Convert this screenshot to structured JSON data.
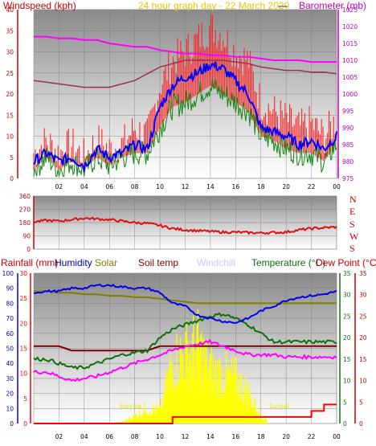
{
  "colors": {
    "windspeed": "#c80000",
    "gust": "#ff2222",
    "average": "#0000ff",
    "wind_mean": "#128812",
    "barometer": "#ff00ff",
    "pressure_trend": "#a0304c",
    "direction": "#dd1111",
    "direction_axis": "#c80000",
    "rainfall": "#ff0000",
    "humidity": "#0000ee",
    "solar": "#808000",
    "solar_fill": "#ffff00",
    "soiltemp": "#800000",
    "windchill": "#c8c8ff",
    "temperature": "#107010",
    "dewpoint": "#ff00ff",
    "dewpoint_axis": "#c80000",
    "axis_left": "#c80000",
    "axis_right": "#c000c0"
  },
  "top": {
    "title_windspeed": "Windspeed (kph)",
    "subtitle": "24 hour graph day - 22 March 2020",
    "subtitle_sep": "---",
    "title_barometer": "Barometer (mb)"
  },
  "middle": {
    "dirs": [
      "N",
      "E",
      "S",
      "W",
      "S"
    ]
  },
  "bottom": {
    "labels": {
      "rainfall": "Rainfall (mm)",
      "humidity": "Humidity",
      "solar": "Solar",
      "soiltemp": "Soil temp",
      "windchill": "Windchill",
      "temperature": "Temperature (°C)",
      "dewpoint": "Dew Point (°C)"
    },
    "sun_labels": [
      "Sunrise",
      "Sunset"
    ]
  },
  "chart_data": [
    {
      "type": "line",
      "title": "24 hour graph day - 22 March 2020",
      "xticks": [
        "02",
        "04",
        "06",
        "08",
        "10",
        "12",
        "14",
        "16",
        "18",
        "20",
        "22",
        "00"
      ],
      "yleft": {
        "label": "Windspeed (kph)",
        "range": [
          0,
          40
        ],
        "ticks": [
          0,
          5,
          10,
          15,
          20,
          25,
          30,
          35,
          40
        ]
      },
      "yright": {
        "label": "Barometer (mb)",
        "range": [
          975,
          1025
        ],
        "ticks": [
          975,
          980,
          985,
          990,
          995,
          1000,
          1005,
          1010,
          1015,
          1020,
          1025
        ]
      },
      "hours": [
        0,
        1,
        2,
        3,
        4,
        5,
        6,
        7,
        8,
        9,
        10,
        11,
        12,
        13,
        14,
        15,
        16,
        17,
        18,
        19,
        20,
        21,
        22,
        23,
        24
      ],
      "series": [
        {
          "name": "Windspeed (kph)",
          "key": "gust",
          "values": [
            6,
            9,
            6,
            8,
            5,
            9,
            7,
            8,
            12,
            10,
            22,
            28,
            30,
            33,
            36,
            34,
            30,
            28,
            18,
            16,
            14,
            12,
            13,
            10,
            14
          ]
        },
        {
          "name": "Windspeed (kph)",
          "key": "average",
          "values": [
            4,
            6,
            4,
            5,
            3,
            7,
            5,
            6,
            8,
            7,
            17,
            22,
            24,
            25,
            27,
            26,
            23,
            20,
            12,
            11,
            10,
            8,
            9,
            7,
            10
          ]
        },
        {
          "key": "wind_mean",
          "values": [
            2,
            5,
            2,
            4,
            2,
            5,
            3,
            5,
            6,
            6,
            12,
            17,
            18,
            20,
            22,
            20,
            18,
            16,
            10,
            9,
            7,
            6,
            6,
            4,
            8
          ]
        },
        {
          "name": "Barometer (mb)",
          "key": "barometer",
          "values": [
            1017,
            1017,
            1016.5,
            1016.5,
            1016,
            1016,
            1015,
            1014.5,
            1014,
            1014,
            1013,
            1012.5,
            1012,
            1012,
            1011.5,
            1011.5,
            1011,
            1011,
            1010.5,
            1010,
            1010,
            1010,
            1009.5,
            1009.5,
            1009.5
          ]
        },
        {
          "key": "pressure_trend",
          "values": [
            1004,
            1003.5,
            1003,
            1002.5,
            1002,
            1002,
            1002,
            1003,
            1004,
            1006,
            1008,
            1009,
            1010,
            1010,
            1010,
            1010,
            1009.5,
            1009,
            1008,
            1007.5,
            1007,
            1007,
            1006.5,
            1006.5,
            1006
          ]
        }
      ]
    },
    {
      "type": "line",
      "title": "Wind direction",
      "yleft": {
        "range": [
          0,
          360
        ],
        "ticks": [
          0,
          90,
          180,
          270,
          360
        ]
      },
      "right_labels": [
        "N",
        "E",
        "S",
        "W",
        "S"
      ],
      "hours": [
        0,
        1,
        2,
        3,
        4,
        5,
        6,
        7,
        8,
        9,
        10,
        11,
        12,
        13,
        14,
        15,
        16,
        17,
        18,
        19,
        20,
        21,
        22,
        23,
        24
      ],
      "series": [
        {
          "key": "direction",
          "values": [
            185,
            195,
            190,
            200,
            210,
            205,
            200,
            190,
            180,
            175,
            160,
            140,
            130,
            125,
            120,
            115,
            115,
            112,
            110,
            112,
            115,
            130,
            140,
            145,
            150
          ]
        }
      ]
    },
    {
      "type": "line",
      "xticks": [
        "02",
        "04",
        "06",
        "08",
        "10",
        "12",
        "14",
        "16",
        "18",
        "20",
        "22",
        "00"
      ],
      "y_humidity": {
        "label": "Humidity",
        "range": [
          0,
          100
        ],
        "ticks": [
          0,
          10,
          20,
          30,
          40,
          50,
          60,
          70,
          80,
          90,
          100
        ]
      },
      "y_rainfall": {
        "label": "Rainfall (mm)",
        "range": [
          0,
          30
        ],
        "ticks": [
          0,
          5,
          10,
          15,
          20,
          25,
          30
        ]
      },
      "y_temperature": {
        "label": "Temperature (°C)",
        "range": [
          0,
          35
        ],
        "ticks": [
          0,
          5,
          10,
          15,
          20,
          25,
          30,
          35
        ]
      },
      "y_dewpoint": {
        "label": "Dew Point (°C)",
        "range": [
          0,
          35
        ],
        "ticks": [
          0,
          5,
          10,
          15,
          20,
          25,
          30,
          35
        ]
      },
      "hours": [
        0,
        1,
        2,
        3,
        4,
        5,
        6,
        7,
        8,
        9,
        10,
        11,
        12,
        13,
        14,
        15,
        16,
        17,
        18,
        19,
        20,
        21,
        22,
        23,
        24
      ],
      "series": [
        {
          "name": "Humidity",
          "key": "humidity",
          "axis": "humidity",
          "values": [
            87,
            88,
            88,
            90,
            90,
            92,
            92,
            91,
            90,
            90,
            87,
            80,
            78,
            72,
            70,
            68,
            67,
            70,
            75,
            78,
            82,
            84,
            85,
            86,
            88
          ]
        },
        {
          "name": "Solar",
          "key": "solar",
          "axis": "humidity",
          "values": [
            88,
            88,
            87,
            87,
            86,
            86,
            85,
            85,
            84,
            84,
            83,
            82,
            81,
            80,
            80,
            80,
            80,
            80,
            80,
            80,
            80,
            80,
            80,
            80,
            80
          ]
        },
        {
          "name": "Temperature (°C)",
          "key": "temperature",
          "axis": "temperature",
          "values": [
            15,
            15,
            14,
            13,
            13,
            14,
            15,
            16,
            16.5,
            17,
            20,
            22,
            23,
            24,
            25,
            25.5,
            24.5,
            23,
            21,
            19,
            19,
            19,
            19,
            19,
            19
          ]
        },
        {
          "name": "Soil temp",
          "key": "soiltemp",
          "axis": "temperature",
          "values": [
            18,
            18,
            18,
            17,
            17,
            17,
            17,
            17,
            17,
            17,
            18,
            18,
            18,
            18,
            18,
            18,
            18,
            18,
            18,
            18,
            18,
            18,
            18,
            18,
            18
          ]
        },
        {
          "name": "Dew Point (°C)",
          "key": "dewpoint",
          "axis": "temperature",
          "values": [
            12,
            12,
            11,
            10,
            10.5,
            11,
            12,
            13,
            14,
            15,
            16,
            17,
            18,
            18.5,
            19,
            18,
            17,
            16,
            16,
            16,
            15.5,
            15.5,
            15.5,
            15.5,
            15.5
          ]
        },
        {
          "name": "Rainfall (mm)",
          "key": "rainfall",
          "axis": "rainfall",
          "values": [
            0,
            0,
            0,
            0,
            0,
            0,
            0,
            0,
            0,
            0,
            0,
            1.3,
            1.3,
            1.3,
            1.3,
            1.3,
            1.3,
            1.3,
            1.3,
            1.3,
            1.3,
            1.3,
            2.5,
            3.8,
            3.8
          ]
        },
        {
          "name": "Solar",
          "key": "solar_radiation",
          "axis": "humidity",
          "values": [
            0,
            0,
            0,
            0,
            0,
            0,
            0,
            1,
            6,
            12,
            10,
            48,
            55,
            60,
            42,
            38,
            35,
            24,
            6,
            0,
            0,
            0,
            0,
            0,
            0
          ]
        }
      ]
    }
  ]
}
